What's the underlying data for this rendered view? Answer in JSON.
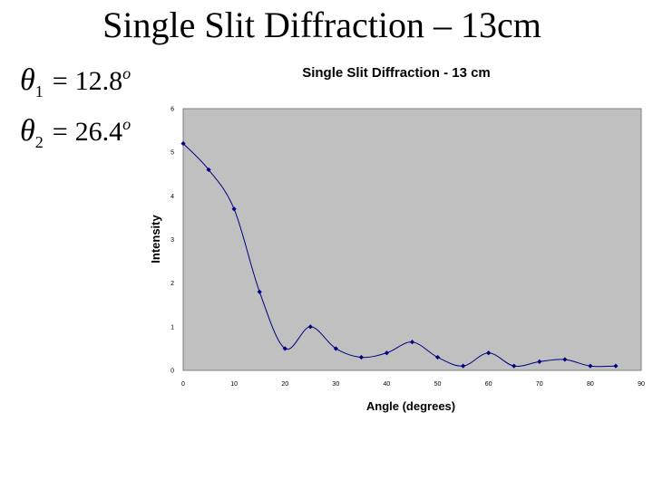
{
  "slide": {
    "title": "Single Slit Diffraction – 13cm",
    "equations": [
      {
        "symbol": "θ",
        "index": "1",
        "value": "12.8",
        "unit": "o"
      },
      {
        "symbol": "θ",
        "index": "2",
        "value": "26.4",
        "unit": "o"
      }
    ]
  },
  "colors": {
    "plot_bg": "#c0c0c0",
    "series": "#000080",
    "frame": "#808080"
  },
  "chart_data": {
    "type": "line",
    "title": "Single Slit Diffraction - 13 cm",
    "xlabel": "Angle (degrees)",
    "ylabel": "Intensity",
    "xlim": [
      0,
      90
    ],
    "ylim": [
      0,
      6
    ],
    "xticks": [
      0,
      10,
      20,
      30,
      40,
      50,
      60,
      70,
      80,
      90
    ],
    "yticks": [
      0,
      1,
      2,
      3,
      4,
      5,
      6
    ],
    "grid": false,
    "legend": "none",
    "series": [
      {
        "x": [
          0,
          5,
          10,
          15,
          20,
          25,
          30,
          35,
          40,
          45,
          50,
          55,
          60,
          65,
          70,
          75,
          80,
          85
        ],
        "y": [
          5.2,
          4.6,
          3.7,
          1.8,
          0.5,
          1.0,
          0.5,
          0.3,
          0.4,
          0.65,
          0.3,
          0.1,
          0.4,
          0.1,
          0.2,
          0.25,
          0.1,
          0.1
        ]
      }
    ]
  }
}
